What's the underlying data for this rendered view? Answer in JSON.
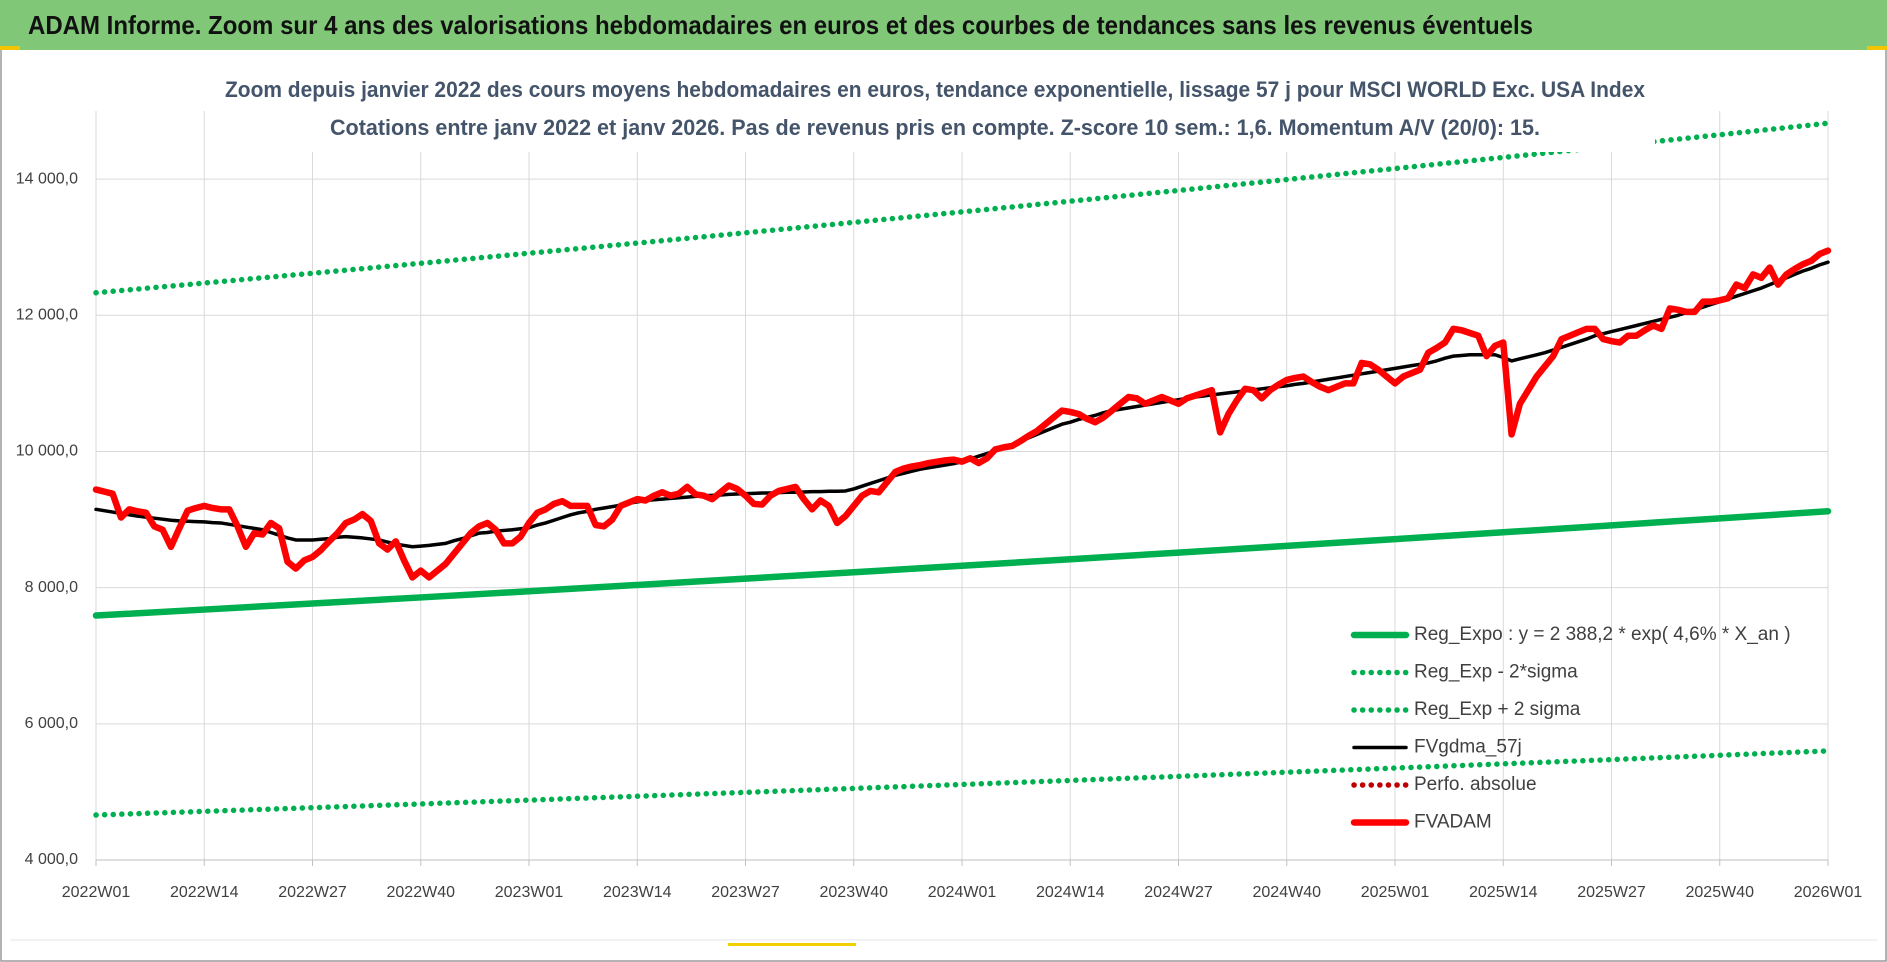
{
  "header": {
    "title": "ADAM Informe. Zoom sur 4 ans des valorisations hebdomadaires en euros et des courbes de tendances sans les revenus éventuels"
  },
  "chart_data": {
    "type": "line",
    "title": "Zoom depuis janvier 2022 des cours moyens hebdomadaires en euros, tendance exponentielle, lissage 57 j pour MSCI WORLD Exc. USA Index",
    "subtitle": "Cotations entre janv 2022 et janv 2026. Pas de revenus pris en compte. Z-score 10 sem.: 1,6. Momentum A/V (20/0): 15.",
    "categories": [
      "2022W01",
      null,
      null,
      null,
      null,
      null,
      null,
      null,
      null,
      null,
      null,
      null,
      null,
      "2022W14",
      null,
      null,
      null,
      null,
      null,
      null,
      null,
      null,
      null,
      null,
      null,
      null,
      "2022W27",
      null,
      null,
      null,
      null,
      null,
      null,
      null,
      null,
      null,
      null,
      null,
      null,
      "2022W40",
      null,
      null,
      null,
      null,
      null,
      null,
      null,
      null,
      null,
      null,
      null,
      null,
      "2023W01",
      null,
      null,
      null,
      null,
      null,
      null,
      null,
      null,
      null,
      null,
      null,
      null,
      "2023W14",
      null,
      null,
      null,
      null,
      null,
      null,
      null,
      null,
      null,
      null,
      null,
      null,
      "2023W27",
      null,
      null,
      null,
      null,
      null,
      null,
      null,
      null,
      null,
      null,
      null,
      null,
      "2023W40",
      null,
      null,
      null,
      null,
      null,
      null,
      null,
      null,
      null,
      null,
      null,
      null,
      "2024W01",
      null,
      null,
      null,
      null,
      null,
      null,
      null,
      null,
      null,
      null,
      null,
      null,
      "2024W14",
      null,
      null,
      null,
      null,
      null,
      null,
      null,
      null,
      null,
      null,
      null,
      null,
      "2024W27",
      null,
      null,
      null,
      null,
      null,
      null,
      null,
      null,
      null,
      null,
      null,
      null,
      "2024W40",
      null,
      null,
      null,
      null,
      null,
      null,
      null,
      null,
      null,
      null,
      null,
      null,
      "2025W01",
      null,
      null,
      null,
      null,
      null,
      null,
      null,
      null,
      null,
      null,
      null,
      null,
      "2025W14",
      null,
      null,
      null,
      null,
      null,
      null,
      null,
      null,
      null,
      null,
      null,
      null,
      "2025W27",
      null,
      null,
      null,
      null,
      null,
      null,
      null,
      null,
      null,
      null,
      null,
      null,
      "2025W40",
      null,
      null,
      null,
      null,
      null,
      null,
      null,
      null,
      null,
      null,
      null,
      null,
      "2026W01"
    ],
    "ylim": [
      4000,
      15000
    ],
    "yticks": [
      {
        "value": 4000,
        "label": "4 000,0"
      },
      {
        "value": 6000,
        "label": "6 000,0"
      },
      {
        "value": 8000,
        "label": "8 000,0"
      },
      {
        "value": 10000,
        "label": "10 000,0"
      },
      {
        "value": 12000,
        "label": "12 000,0"
      },
      {
        "value": 14000,
        "label": "14 000,0"
      }
    ],
    "grid": true,
    "legend": "lower right",
    "series": [
      {
        "name": "Reg_Expo : y = 2 388,2 * exp( 4,6% *  X_an )",
        "color": "#00b050",
        "style": "solid",
        "x": [
          "2022W01",
          "2022W14",
          "2022W27",
          "2022W40",
          "2023W01",
          "2023W14",
          "2023W27",
          "2023W40",
          "2024W01",
          "2024W14",
          "2024W27",
          "2024W40",
          "2025W01",
          "2025W14",
          "2025W27",
          "2025W40",
          "2026W01"
        ],
        "values": [
          7590,
          7678,
          7767,
          7856,
          7947,
          8039,
          8132,
          8226,
          8321,
          8417,
          8514,
          8613,
          8712,
          8813,
          8915,
          9018,
          9122
        ]
      },
      {
        "name": "Reg_Exp - 2*sigma",
        "color": "#00b050",
        "style": "dotted",
        "x": [
          "2022W01",
          "2022W14",
          "2022W27",
          "2022W40",
          "2023W01",
          "2023W14",
          "2023W27",
          "2023W40",
          "2024W01",
          "2024W14",
          "2024W27",
          "2024W40",
          "2025W01",
          "2025W14",
          "2025W27",
          "2025W40",
          "2026W01"
        ],
        "values": [
          4660,
          4714,
          4768,
          4823,
          4879,
          4936,
          4993,
          5051,
          5109,
          5168,
          5228,
          5289,
          5350,
          5412,
          5474,
          5538,
          5602
        ]
      },
      {
        "name": "Reg_Exp + 2 sigma",
        "color": "#00b050",
        "style": "dotted",
        "x": [
          "2022W01",
          "2022W14",
          "2022W27",
          "2022W40",
          "2023W01",
          "2023W14",
          "2023W27",
          "2023W40",
          "2024W01",
          "2024W14",
          "2024W27",
          "2024W40",
          "2025W01",
          "2025W14",
          "2025W27",
          "2025W40",
          "2026W01"
        ],
        "values": [
          12330,
          12473,
          12617,
          12763,
          12911,
          13060,
          13211,
          13364,
          13518,
          13675,
          13833,
          13993,
          14155,
          14318,
          14484,
          14651,
          14821
        ]
      },
      {
        "name": "FVgdma_57j",
        "color": "#000000",
        "style": "solid",
        "values": [
          9150,
          9130,
          9110,
          9090,
          9070,
          9050,
          9035,
          9020,
          9005,
          8990,
          8980,
          8975,
          8970,
          8965,
          8955,
          8950,
          8930,
          8910,
          8890,
          8870,
          8850,
          8810,
          8770,
          8730,
          8700,
          8700,
          8700,
          8710,
          8720,
          8740,
          8750,
          8740,
          8730,
          8715,
          8700,
          8670,
          8640,
          8620,
          8600,
          8610,
          8620,
          8635,
          8650,
          8690,
          8720,
          8760,
          8800,
          8810,
          8830,
          8840,
          8850,
          8865,
          8880,
          8920,
          8950,
          8990,
          9030,
          9070,
          9100,
          9120,
          9150,
          9170,
          9190,
          9210,
          9240,
          9260,
          9280,
          9290,
          9300,
          9310,
          9320,
          9330,
          9340,
          9350,
          9355,
          9360,
          9370,
          9375,
          9380,
          9385,
          9390,
          9390,
          9395,
          9400,
          9400,
          9405,
          9410,
          9410,
          9415,
          9415,
          9420,
          9450,
          9490,
          9530,
          9570,
          9610,
          9650,
          9680,
          9710,
          9740,
          9760,
          9780,
          9800,
          9820,
          9850,
          9890,
          9930,
          9970,
          10010,
          10060,
          10100,
          10150,
          10200,
          10250,
          10300,
          10350,
          10400,
          10430,
          10470,
          10500,
          10530,
          10570,
          10600,
          10620,
          10640,
          10660,
          10680,
          10700,
          10720,
          10740,
          10760,
          10780,
          10800,
          10815,
          10830,
          10845,
          10860,
          10875,
          10890,
          10905,
          10920,
          10935,
          10950,
          10965,
          10985,
          11000,
          11020,
          11040,
          11060,
          11080,
          11100,
          11120,
          11140,
          11160,
          11180,
          11200,
          11220,
          11240,
          11260,
          11280,
          11300,
          11330,
          11370,
          11400,
          11410,
          11420,
          11420,
          11420,
          11420,
          11380,
          11330,
          11360,
          11390,
          11420,
          11450,
          11490,
          11530,
          11570,
          11610,
          11650,
          11700,
          11730,
          11760,
          11790,
          11820,
          11850,
          11880,
          11910,
          11940,
          11970,
          12000,
          12040,
          12080,
          12120,
          12160,
          12200,
          12240,
          12280,
          12320,
          12360,
          12400,
          12450,
          12500,
          12550,
          12600,
          12650,
          12690,
          12740,
          12780
        ]
      },
      {
        "name": "Perfo. absolue",
        "color": "#c00000",
        "style": "dotted",
        "x": [],
        "values": []
      },
      {
        "name": "FVADAM",
        "color": "#ff0000",
        "style": "solid",
        "values": [
          9440,
          9410,
          9380,
          9030,
          9150,
          9120,
          9100,
          8900,
          8850,
          8600,
          8870,
          9130,
          9170,
          9200,
          9170,
          9150,
          9150,
          8900,
          8600,
          8800,
          8780,
          8950,
          8870,
          8380,
          8280,
          8400,
          8450,
          8550,
          8680,
          8800,
          8950,
          9000,
          9080,
          8980,
          8650,
          8560,
          8680,
          8400,
          8150,
          8250,
          8150,
          8250,
          8350,
          8500,
          8650,
          8800,
          8900,
          8950,
          8850,
          8650,
          8650,
          8750,
          8950,
          9100,
          9150,
          9230,
          9270,
          9200,
          9200,
          9200,
          8920,
          8900,
          9000,
          9200,
          9250,
          9300,
          9280,
          9350,
          9400,
          9350,
          9380,
          9480,
          9370,
          9350,
          9300,
          9400,
          9500,
          9450,
          9350,
          9230,
          9220,
          9350,
          9420,
          9450,
          9480,
          9300,
          9150,
          9280,
          9200,
          8950,
          9050,
          9200,
          9350,
          9420,
          9400,
          9550,
          9700,
          9750,
          9780,
          9800,
          9830,
          9850,
          9870,
          9880,
          9850,
          9900,
          9830,
          9900,
          10030,
          10060,
          10080,
          10150,
          10230,
          10300,
          10400,
          10500,
          10600,
          10580,
          10550,
          10480,
          10430,
          10500,
          10600,
          10700,
          10800,
          10780,
          10700,
          10750,
          10800,
          10750,
          10700,
          10780,
          10820,
          10860,
          10900,
          10280,
          10550,
          10750,
          10920,
          10900,
          10780,
          10900,
          10980,
          11050,
          11080,
          11100,
          11020,
          10950,
          10900,
          10950,
          11000,
          11000,
          11300,
          11280,
          11200,
          11100,
          11000,
          11100,
          11150,
          11200,
          11450,
          11520,
          11600,
          11800,
          11780,
          11740,
          11700,
          11400,
          11550,
          11600,
          10250,
          10700,
          10900,
          11100,
          11250,
          11400,
          11650,
          11700,
          11750,
          11800,
          11800,
          11650,
          11620,
          11600,
          11700,
          11700,
          11780,
          11850,
          11800,
          12100,
          12080,
          12050,
          12050,
          12200,
          12200,
          12220,
          12250,
          12450,
          12400,
          12600,
          12550,
          12700,
          12450,
          12600,
          12680,
          12750,
          12800,
          12900,
          12950
        ]
      }
    ]
  }
}
